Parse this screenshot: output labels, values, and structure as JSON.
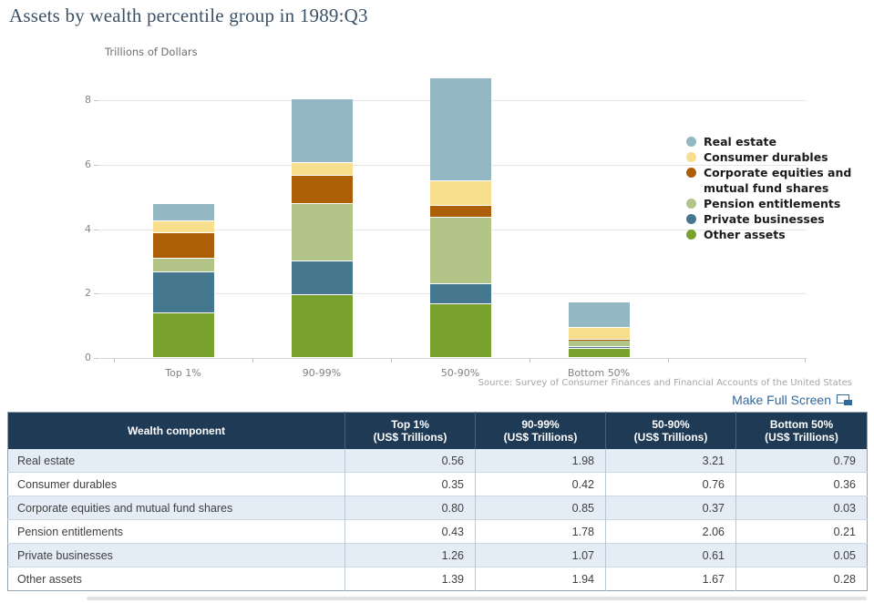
{
  "page": {
    "title": "Assets by wealth percentile group in 1989:Q3",
    "unit_label": "Trillions of Dollars",
    "source_note": "Source: Survey of Consumer Finances and Financial Accounts of the United States",
    "make_full_screen_label": "Make Full Screen"
  },
  "colors": {
    "title_text": "#3b5166",
    "table_header_bg": "#1f3a55",
    "table_stripe_bg": "#e4ecf6",
    "link_blue": "#33689c",
    "grid_line": "#e7e7e7",
    "tick_text": "#858585",
    "source_text": "#a6a6a6"
  },
  "chart_data": {
    "type": "bar",
    "stacked": true,
    "title": "Assets by wealth percentile group in 1989:Q3",
    "value_axis_label": "Trillions of Dollars",
    "categories": [
      "Top 1%",
      "90-99%",
      "50-90%",
      "Bottom 50%"
    ],
    "series": [
      {
        "name": "Real estate",
        "color": "#93b7c3",
        "values": [
          0.56,
          1.98,
          3.21,
          0.79
        ]
      },
      {
        "name": "Consumer durables",
        "color": "#f8df8e",
        "values": [
          0.35,
          0.42,
          0.76,
          0.36
        ]
      },
      {
        "name": "Corporate equities and mutual fund shares",
        "color": "#ad5f08",
        "values": [
          0.8,
          0.85,
          0.37,
          0.03
        ]
      },
      {
        "name": "Pension entitlements",
        "color": "#b2c488",
        "values": [
          0.43,
          1.78,
          2.06,
          0.21
        ]
      },
      {
        "name": "Private businesses",
        "color": "#45788f",
        "values": [
          1.26,
          1.07,
          0.61,
          0.05
        ]
      },
      {
        "name": "Other assets",
        "color": "#78a22d",
        "values": [
          1.39,
          1.94,
          1.67,
          0.28
        ]
      }
    ],
    "stack_order": "bottom-to-top is reverse of legend order (Other assets at bottom, Real estate on top)",
    "category_totals": [
      4.79,
      8.04,
      8.68,
      1.72
    ],
    "ylim": [
      0,
      8.7
    ],
    "yticks": [
      0,
      2,
      4,
      6,
      8
    ],
    "grid": true,
    "legend_position": "right"
  },
  "table": {
    "columns": [
      {
        "title": "Wealth component",
        "sub": ""
      },
      {
        "title": "Top 1%",
        "sub": "(US$ Trillions)"
      },
      {
        "title": "90-99%",
        "sub": "(US$ Trillions)"
      },
      {
        "title": "50-90%",
        "sub": "(US$ Trillions)"
      },
      {
        "title": "Bottom 50%",
        "sub": "(US$ Trillions)"
      }
    ],
    "rows": [
      {
        "component": "Real estate",
        "values": [
          "0.56",
          "1.98",
          "3.21",
          "0.79"
        ]
      },
      {
        "component": "Consumer durables",
        "values": [
          "0.35",
          "0.42",
          "0.76",
          "0.36"
        ]
      },
      {
        "component": "Corporate equities and mutual fund shares",
        "values": [
          "0.80",
          "0.85",
          "0.37",
          "0.03"
        ]
      },
      {
        "component": "Pension entitlements",
        "values": [
          "0.43",
          "1.78",
          "2.06",
          "0.21"
        ]
      },
      {
        "component": "Private businesses",
        "values": [
          "1.26",
          "1.07",
          "0.61",
          "0.05"
        ]
      },
      {
        "component": "Other assets",
        "values": [
          "1.39",
          "1.94",
          "1.67",
          "0.28"
        ]
      }
    ]
  }
}
